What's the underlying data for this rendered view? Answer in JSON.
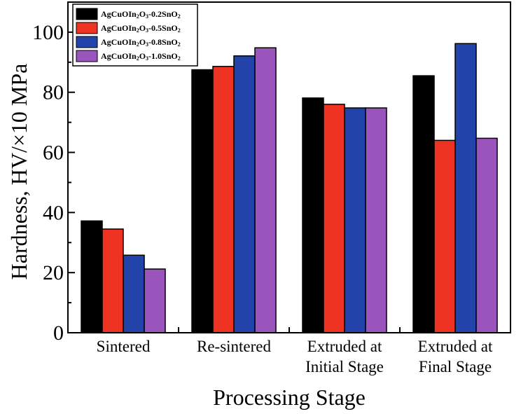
{
  "chart_data": {
    "type": "bar",
    "title": "",
    "xlabel": "Processing Stage",
    "ylabel": "Hardness, HV/×10 MPa",
    "ylim": [
      0,
      110
    ],
    "yticks": [
      0,
      20,
      40,
      60,
      80,
      100
    ],
    "categories": [
      [
        "Sintered"
      ],
      [
        "Re-sintered"
      ],
      [
        "Extruded at",
        "Initial Stage"
      ],
      [
        "Extruded at",
        "Final Stage"
      ]
    ],
    "series": [
      {
        "name": "AgCuOIn2O3-0.2SnO2",
        "label_parts": [
          "AgCuOIn",
          "2",
          "O",
          "3",
          "-0.2SnO",
          "2"
        ],
        "color": "#000000",
        "values": [
          37.2,
          87.5,
          78.1,
          85.5
        ]
      },
      {
        "name": "AgCuOIn2O3-0.5SnO2",
        "label_parts": [
          "AgCuOIn",
          "2",
          "O",
          "3",
          "-0.5SnO",
          "2"
        ],
        "color": "#ee3322",
        "values": [
          34.5,
          88.6,
          76.0,
          64.0
        ]
      },
      {
        "name": "AgCuOIn2O3-0.8SnO2",
        "label_parts": [
          "AgCuOIn",
          "2",
          "O",
          "3",
          "-0.8SnO",
          "2"
        ],
        "color": "#2244aa",
        "values": [
          25.8,
          92.1,
          74.8,
          96.2
        ]
      },
      {
        "name": "AgCuOIn2O3-1.0SnO2",
        "label_parts": [
          "AgCuOIn",
          "2",
          "O",
          "3",
          "-1.0SnO",
          "2"
        ],
        "color": "#9955bb",
        "values": [
          21.2,
          94.8,
          74.8,
          64.7
        ]
      }
    ],
    "legend_position": "top-left",
    "grid": false
  }
}
